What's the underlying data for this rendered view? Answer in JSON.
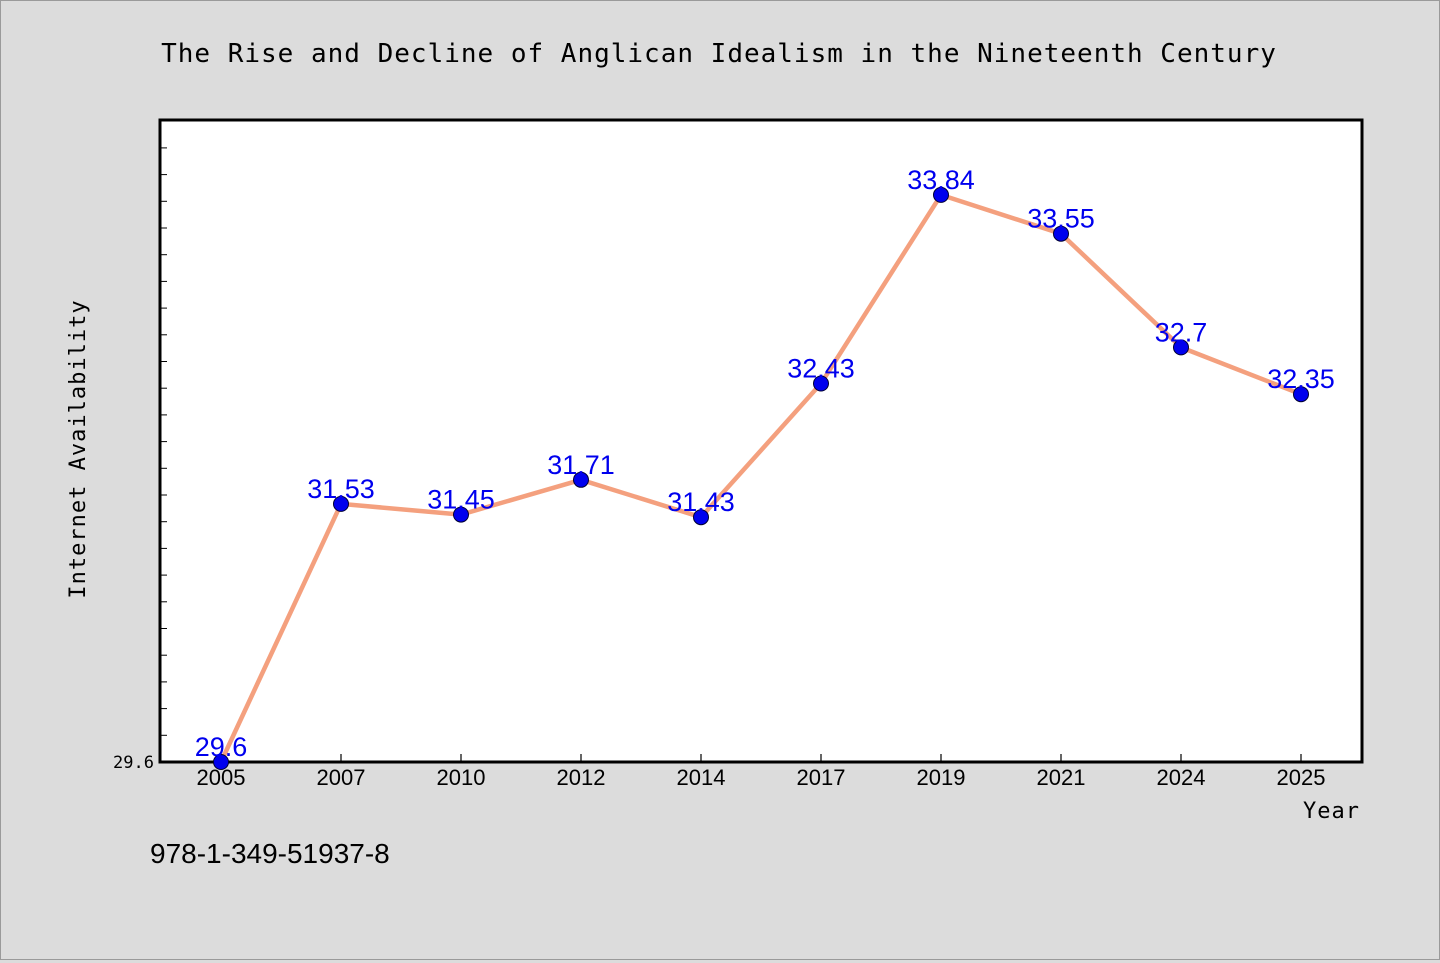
{
  "chart_data": {
    "type": "line",
    "title": "The Rise and Decline of Anglican Idealism in the Nineteenth Century",
    "xlabel": "Year",
    "ylabel": "Internet Availability",
    "categories": [
      "2005",
      "2007",
      "2010",
      "2012",
      "2014",
      "2017",
      "2019",
      "2021",
      "2024",
      "2025"
    ],
    "series": [
      {
        "values": [
          29.6,
          31.53,
          31.45,
          31.71,
          31.43,
          32.43,
          33.84,
          33.55,
          32.7,
          32.35
        ],
        "labels": [
          "29.6",
          "31.53",
          "31.45",
          "31.71",
          "31.43",
          "32.43",
          "33.84",
          "33.55",
          "32.7",
          "32.35"
        ]
      }
    ],
    "y_tick_labels": [
      "29.6"
    ],
    "ylim": [
      29.6,
      34.4
    ],
    "grid": false,
    "legend": "none",
    "colors": {
      "line": "#f4a07e",
      "marker": "#0000ee",
      "data_label": "#0000ee",
      "plot_background": "#ffffff",
      "figure_background": "#dcdcdc"
    }
  },
  "footer_text": "978-1-349-51937-8"
}
